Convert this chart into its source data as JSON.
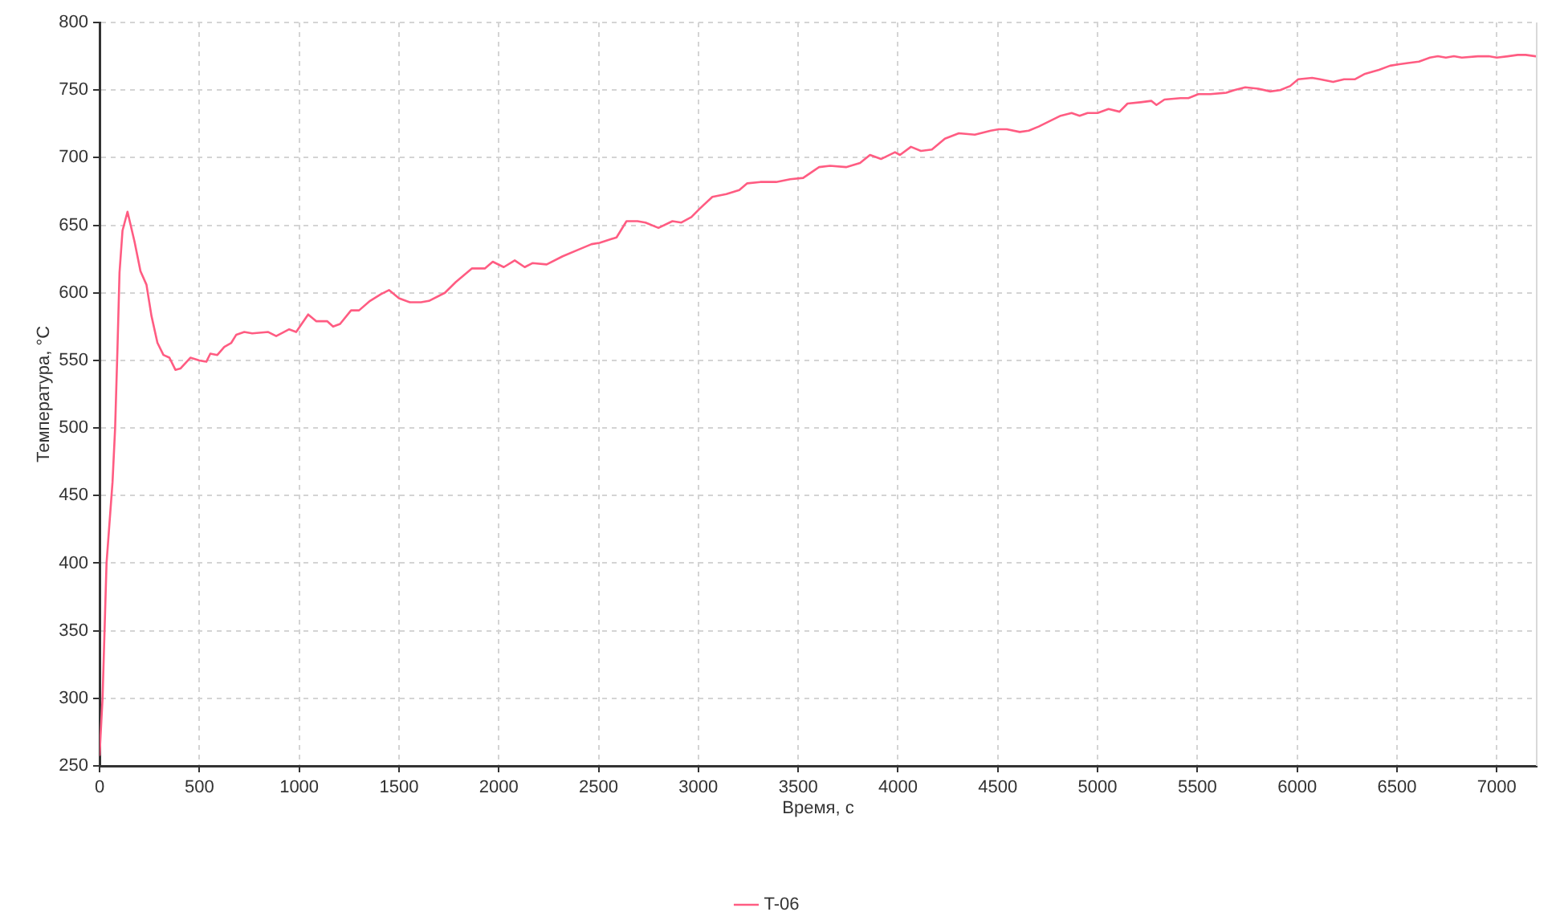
{
  "chart_data": {
    "type": "line",
    "xlabel": "Время, с",
    "ylabel": "Температура, °С",
    "xlim": [
      0,
      7200
    ],
    "xticks": [
      0,
      500,
      1000,
      1500,
      2000,
      2500,
      3000,
      3500,
      4000,
      4500,
      5000,
      5500,
      6000,
      6500,
      7000
    ],
    "ylim": [
      250,
      800
    ],
    "yticks": [
      250,
      300,
      350,
      400,
      450,
      500,
      550,
      600,
      650,
      700,
      750,
      800
    ],
    "grid": true,
    "legend": "bottom",
    "marker": "none",
    "line_style": "solid",
    "x": [
      0,
      15,
      35,
      65,
      78,
      90,
      100,
      115,
      140,
      175,
      205,
      235,
      260,
      290,
      320,
      350,
      380,
      405,
      455,
      500,
      535,
      555,
      590,
      625,
      660,
      685,
      725,
      765,
      845,
      885,
      950,
      985,
      1045,
      1085,
      1140,
      1170,
      1205,
      1260,
      1300,
      1355,
      1410,
      1450,
      1500,
      1555,
      1610,
      1650,
      1730,
      1785,
      1865,
      1930,
      1970,
      2025,
      2080,
      2130,
      2170,
      2240,
      2320,
      2400,
      2465,
      2505,
      2590,
      2640,
      2695,
      2735,
      2800,
      2870,
      2915,
      2965,
      3005,
      3070,
      3140,
      3205,
      3245,
      3310,
      3390,
      3460,
      3525,
      3605,
      3660,
      3740,
      3810,
      3860,
      3915,
      3985,
      4010,
      4065,
      4115,
      4170,
      4235,
      4305,
      4385,
      4465,
      4505,
      4545,
      4610,
      4655,
      4705,
      4760,
      4815,
      4870,
      4910,
      4950,
      5000,
      5055,
      5110,
      5150,
      5215,
      5270,
      5295,
      5335,
      5415,
      5455,
      5505,
      5565,
      5645,
      5685,
      5740,
      5805,
      5865,
      5915,
      5965,
      6005,
      6075,
      6115,
      6180,
      6235,
      6290,
      6340,
      6410,
      6465,
      6505,
      6555,
      6610,
      6665,
      6705,
      6745,
      6785,
      6825,
      6905,
      6960,
      7000,
      7055,
      7105,
      7145,
      7195
    ],
    "series": [
      {
        "name": "T-06",
        "color": "#ff5c82",
        "values": [
          258,
          300,
          400,
          460,
          500,
          560,
          615,
          646,
          660,
          638,
          616,
          606,
          583,
          563,
          554,
          552,
          543,
          544,
          552,
          550,
          549,
          555,
          554,
          560,
          563,
          569,
          571,
          570,
          571,
          568,
          573,
          571,
          584,
          579,
          579,
          575,
          577,
          587,
          587,
          594,
          599,
          602,
          596,
          593,
          593,
          594,
          600,
          608,
          618,
          618,
          623,
          619,
          624,
          619,
          622,
          621,
          627,
          632,
          636,
          637,
          641,
          653,
          653,
          652,
          648,
          653,
          652,
          656,
          662,
          671,
          673,
          676,
          681,
          682,
          682,
          684,
          685,
          693,
          694,
          693,
          696,
          702,
          699,
          704,
          702,
          708,
          705,
          706,
          714,
          718,
          717,
          720,
          721,
          721,
          719,
          720,
          723,
          727,
          731,
          733,
          731,
          733,
          733,
          736,
          734,
          740,
          741,
          742,
          739,
          743,
          744,
          744,
          747,
          747,
          748,
          750,
          752,
          751,
          749,
          750,
          753,
          758,
          759,
          758,
          756,
          758,
          758,
          762,
          765,
          768,
          769,
          770,
          771,
          774,
          775,
          774,
          775,
          774,
          775,
          775,
          774,
          775,
          776,
          776,
          775
        ]
      }
    ]
  }
}
